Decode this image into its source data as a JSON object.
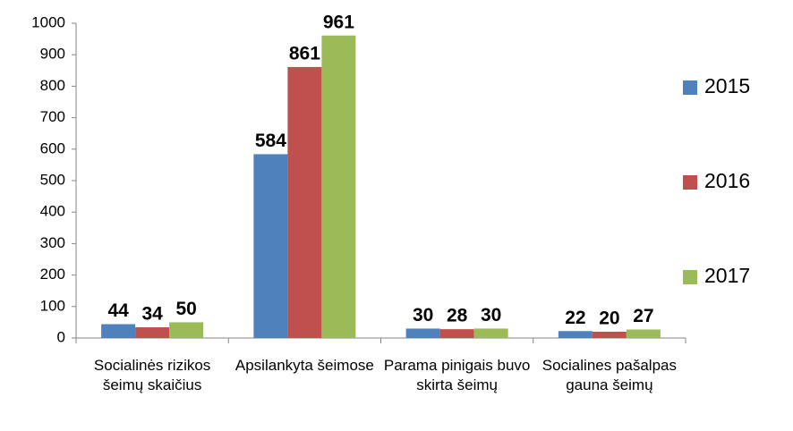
{
  "chart_data": {
    "type": "bar",
    "categories": [
      "Socialinės rizikos šeimų skaičius",
      "Apsilankyta šeimose",
      "Parama pinigais buvo skirta šeimų",
      "Socialines pašalpas gauna šeimų"
    ],
    "series": [
      {
        "name": "2015",
        "color": "#4f81bd",
        "values": [
          44,
          584,
          30,
          22
        ]
      },
      {
        "name": "2016",
        "color": "#c0504d",
        "values": [
          34,
          861,
          28,
          20
        ]
      },
      {
        "name": "2017",
        "color": "#9bbb59",
        "values": [
          50,
          961,
          30,
          27
        ]
      }
    ],
    "ylim": [
      0,
      1000
    ],
    "yticks": [
      0,
      100,
      200,
      300,
      400,
      500,
      600,
      700,
      800,
      900,
      1000
    ],
    "grid": false,
    "legend": "right"
  }
}
